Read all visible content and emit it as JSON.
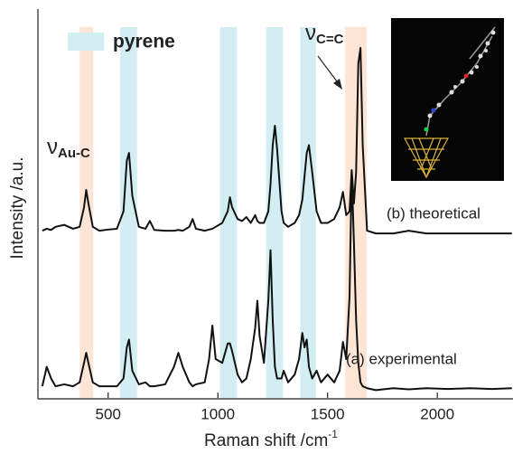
{
  "chart_data": {
    "type": "line",
    "xlabel": "Raman shift /cm",
    "xlabel_sup": "-1",
    "ylabel": "Intensity /a.u.",
    "xlim": [
      180,
      2345
    ],
    "xticks": [
      500,
      1000,
      1500,
      2000
    ],
    "ylim": [
      0,
      100
    ],
    "legend": {
      "label": "pyrene",
      "color": "#d3eef3"
    },
    "bands": [
      {
        "x": [
          370,
          432
        ],
        "color": "#fde5d6"
      },
      {
        "x": [
          555,
          632
        ],
        "color": "#d3eef3"
      },
      {
        "x": [
          1010,
          1087
        ],
        "color": "#d3eef3"
      },
      {
        "x": [
          1220,
          1298
        ],
        "color": "#d3eef3"
      },
      {
        "x": [
          1375,
          1447
        ],
        "color": "#d3eef3"
      },
      {
        "x": [
          1580,
          1678
        ],
        "color": "#fde5d6"
      }
    ],
    "annotations": [
      {
        "text": "ν",
        "sub": "Au-C"
      },
      {
        "text": "ν",
        "sub": "C=C"
      }
    ],
    "x": [
      200,
      220,
      240,
      260,
      300,
      340,
      370,
      390,
      400,
      410,
      430,
      460,
      500,
      540,
      570,
      585,
      595,
      610,
      640,
      670,
      690,
      710,
      760,
      800,
      820,
      840,
      870,
      885,
      900,
      940,
      960,
      975,
      990,
      1020,
      1045,
      1055,
      1065,
      1090,
      1110,
      1130,
      1150,
      1170,
      1180,
      1190,
      1210,
      1230,
      1240,
      1250,
      1260,
      1270,
      1290,
      1300,
      1320,
      1350,
      1370,
      1385,
      1395,
      1405,
      1415,
      1430,
      1450,
      1470,
      1500,
      1530,
      1555,
      1570,
      1585,
      1600,
      1610,
      1620,
      1630,
      1640,
      1650,
      1660,
      1680,
      1720,
      1800,
      1870,
      1950,
      2050,
      2150,
      2250,
      2340
    ],
    "series": [
      {
        "name": "(b) theoretical",
        "color": "#111111",
        "values": [
          43,
          43.5,
          43.2,
          44,
          44.5,
          43.5,
          44,
          49,
          53.5,
          50,
          44,
          43,
          43.3,
          43.5,
          48,
          61,
          63,
          52,
          44,
          43.5,
          45.5,
          43.2,
          43,
          43,
          43.2,
          43,
          44,
          46,
          43.5,
          43,
          43.3,
          43.5,
          44,
          45,
          48,
          51.6,
          49,
          46,
          45.5,
          46.5,
          45,
          47,
          45.5,
          45,
          45,
          48,
          55,
          65,
          70,
          64,
          48,
          45,
          44,
          45,
          47,
          51,
          57,
          63,
          65,
          58,
          48,
          45,
          45,
          46,
          49,
          53,
          47,
          48,
          58.6,
          50,
          58,
          86,
          90,
          65,
          43,
          42.3,
          42.3,
          43,
          42.3,
          42.3,
          42.3,
          42.3,
          42.3
        ]
      },
      {
        "name": "(a) experimental",
        "color": "#111111",
        "values": [
          3,
          8,
          5,
          3,
          3.5,
          3,
          4,
          9,
          11.6,
          9,
          4,
          3,
          3,
          3,
          5,
          13,
          15,
          7,
          3.5,
          4,
          3,
          3,
          3.5,
          8,
          11.6,
          8,
          4,
          3,
          3.5,
          4,
          10,
          18.6,
          10,
          9,
          14,
          14,
          12,
          6,
          4,
          5,
          10,
          18,
          25,
          16,
          9,
          25,
          38,
          20,
          8,
          5,
          5,
          7,
          4,
          6,
          10,
          16.7,
          13,
          15,
          8,
          5,
          7,
          4,
          6,
          4,
          7,
          14.4,
          10,
          26,
          58,
          40,
          20,
          9,
          4,
          3,
          2.5,
          2,
          2.5,
          2.2,
          2.5,
          2.3,
          2.5,
          2.3,
          2.5
        ]
      }
    ]
  }
}
